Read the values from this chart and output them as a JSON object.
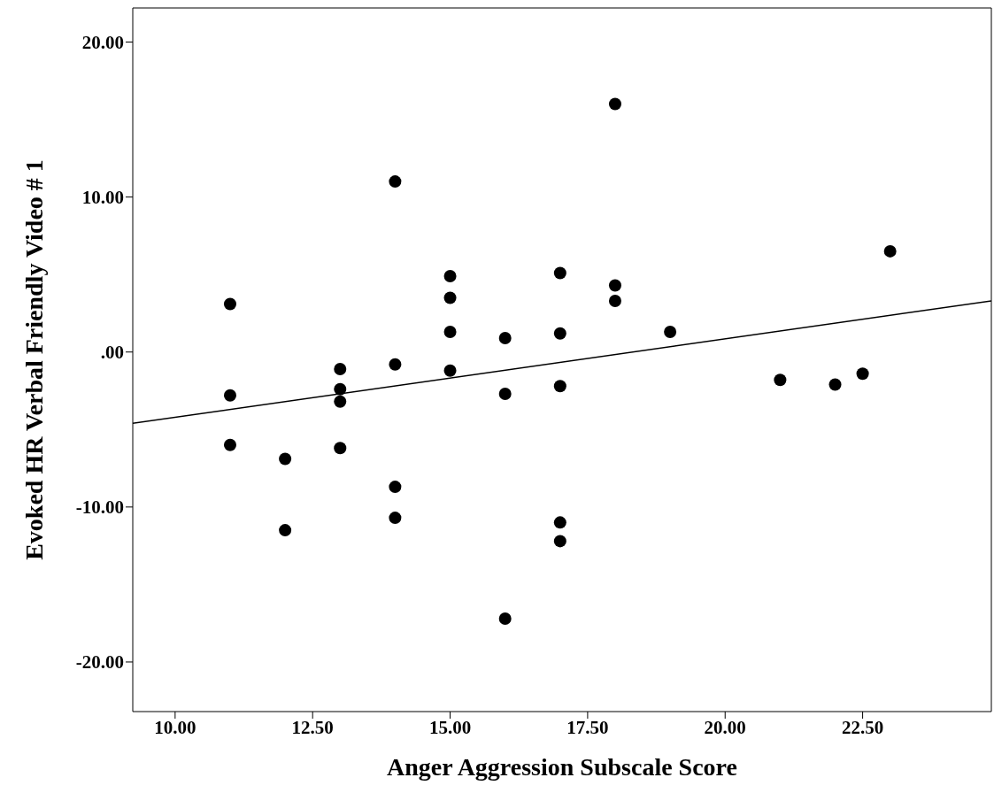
{
  "chart_data": {
    "type": "scatter",
    "xlabel": "Anger Aggression Subscale Score",
    "ylabel": "Evoked HR Verbal Friendly Video # 1",
    "xlim": [
      9.23,
      24.84
    ],
    "ylim": [
      -23.2,
      22.2
    ],
    "xticks": [
      {
        "value": 10,
        "label": "10.00"
      },
      {
        "value": 12.5,
        "label": "12.50"
      },
      {
        "value": 15,
        "label": "15.00"
      },
      {
        "value": 17.5,
        "label": "17.50"
      },
      {
        "value": 20,
        "label": "20.00"
      },
      {
        "value": 22.5,
        "label": "22.50"
      }
    ],
    "yticks": [
      {
        "value": -20,
        "label": "-20.00"
      },
      {
        "value": -10,
        "label": "-10.00"
      },
      {
        "value": 0,
        "label": ".00"
      },
      {
        "value": 10,
        "label": "10.00"
      },
      {
        "value": 20,
        "label": "20.00"
      }
    ],
    "marker": "circle",
    "grid": false,
    "series": [
      {
        "type": "scatter",
        "color": "#000000",
        "x": [
          11,
          11,
          11,
          12,
          12,
          13,
          13,
          13,
          13,
          14,
          14,
          14,
          14,
          15,
          15,
          15,
          15,
          16,
          16,
          16,
          17,
          17,
          17,
          17,
          17,
          18,
          18,
          18,
          19,
          21,
          22,
          22.5,
          23
        ],
        "values": [
          3.1,
          -2.8,
          -6.0,
          -6.9,
          -11.5,
          -1.1,
          -2.4,
          -3.2,
          -6.2,
          11.0,
          -0.8,
          -8.7,
          -10.7,
          4.9,
          3.5,
          1.3,
          -1.2,
          0.9,
          -2.7,
          -17.2,
          5.1,
          1.2,
          -2.2,
          -11.0,
          -12.2,
          16.0,
          4.3,
          3.3,
          1.3,
          -1.8,
          -2.1,
          -1.4,
          6.5
        ]
      },
      {
        "type": "line",
        "color": "#000000",
        "marker": "none",
        "x": [
          9.23,
          24.84
        ],
        "values": [
          -4.6,
          3.3
        ]
      }
    ]
  }
}
